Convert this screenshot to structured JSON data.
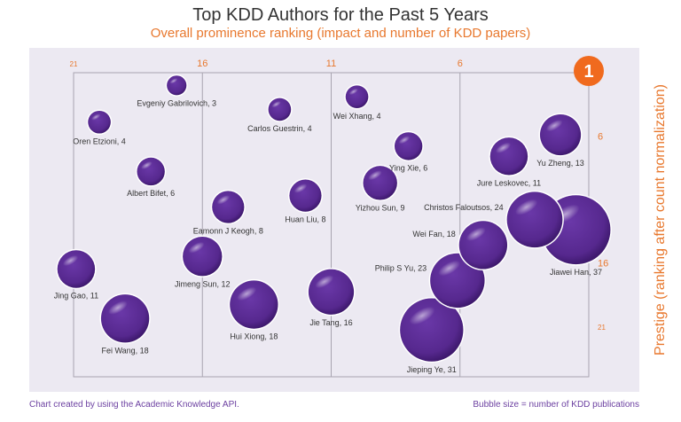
{
  "chart_data": {
    "type": "scatter",
    "subtype": "bubble",
    "title": "Top KDD Authors for the Past 5 Years",
    "subtitle": "Overall prominence ranking (impact and number of KDD papers)",
    "xlabel": "Overall prominence ranking",
    "ylabel": "Prestige (ranking after count normalization)",
    "x_ticks": [
      21,
      16,
      11,
      6
    ],
    "y_ticks": [
      6,
      16,
      21
    ],
    "top_rank_badge": "1",
    "xlim": [
      21,
      1
    ],
    "ylim": [
      1,
      25
    ],
    "size_meaning": "Bubble size = number of KDD publications",
    "source_note": "Chart created by using the Academic Knowledge API.",
    "colors": {
      "bubble": "#5B2C91",
      "accent": "#E8782E",
      "badge": "#F06A1E",
      "panel": "#ECE9F2",
      "footer": "#6B3FA0"
    },
    "points": [
      {
        "name": "Evgeniy Gabrilovich",
        "papers": 3,
        "label": "Evgeniy Gabrilovich, 3",
        "x": 17.0,
        "y": 2.0,
        "label_pos": "below"
      },
      {
        "name": "Oren Etzioni",
        "papers": 4,
        "label": "Oren Etzioni, 4",
        "x": 20.0,
        "y": 4.9,
        "label_pos": "below"
      },
      {
        "name": "Carlos Guestrin",
        "papers": 4,
        "label": "Carlos Guestrin, 4",
        "x": 13.0,
        "y": 3.9,
        "label_pos": "below"
      },
      {
        "name": "Wei Xhang",
        "papers": 4,
        "label": "Wei Xhang, 4",
        "x": 10.0,
        "y": 2.9,
        "label_pos": "below"
      },
      {
        "name": "Albert Bifet",
        "papers": 6,
        "label": "Albert Bifet, 6",
        "x": 18.0,
        "y": 8.8,
        "label_pos": "below"
      },
      {
        "name": "Ying Xie",
        "papers": 6,
        "label": "Ying Xie, 6",
        "x": 8.0,
        "y": 6.8,
        "label_pos": "below"
      },
      {
        "name": "Yizhou Sun",
        "papers": 9,
        "label": "Yizhou Sun, 9",
        "x": 9.1,
        "y": 9.7,
        "label_pos": "below"
      },
      {
        "name": "Jure Leskovec",
        "papers": 11,
        "label": "Jure Leskovec, 11",
        "x": 4.1,
        "y": 7.6,
        "label_pos": "below"
      },
      {
        "name": "Yu Zheng",
        "papers": 13,
        "label": "Yu Zheng, 13",
        "x": 2.1,
        "y": 5.9,
        "label_pos": "below"
      },
      {
        "name": "Eamonn J Keogh",
        "papers": 8,
        "label": "Eamonn J Keogh, 8",
        "x": 15.0,
        "y": 11.6,
        "label_pos": "below"
      },
      {
        "name": "Huan Liu",
        "papers": 8,
        "label": "Huan Liu, 8",
        "x": 12.0,
        "y": 10.7,
        "label_pos": "below"
      },
      {
        "name": "Jing Gao",
        "papers": 11,
        "label": "Jing Gao, 11",
        "x": 20.9,
        "y": 16.5,
        "label_pos": "below"
      },
      {
        "name": "Jimeng Sun",
        "papers": 12,
        "label": "Jimeng Sun, 12",
        "x": 16.0,
        "y": 15.5,
        "label_pos": "below"
      },
      {
        "name": "Hui Xiong",
        "papers": 18,
        "label": "Hui Xiong, 18",
        "x": 14.0,
        "y": 19.3,
        "label_pos": "below"
      },
      {
        "name": "Jie Tang",
        "papers": 16,
        "label": "Jie Tang, 16",
        "x": 11.0,
        "y": 18.3,
        "label_pos": "below"
      },
      {
        "name": "Fei Wang",
        "papers": 18,
        "label": "Fei Wang, 18",
        "x": 19.0,
        "y": 20.4,
        "label_pos": "below"
      },
      {
        "name": "Jieping Ye",
        "papers": 31,
        "label": "Jieping Ye, 31",
        "x": 7.1,
        "y": 21.3,
        "label_pos": "below"
      },
      {
        "name": "Philip S Yu",
        "papers": 23,
        "label": "Philip S Yu, 23",
        "x": 6.1,
        "y": 17.4,
        "label_pos": "left"
      },
      {
        "name": "Wei Fan",
        "papers": 18,
        "label": "Wei Fan, 18",
        "x": 5.1,
        "y": 14.6,
        "label_pos": "left"
      },
      {
        "name": "Jiawei Han",
        "papers": 37,
        "label": "Jiawei Han, 37",
        "x": 1.5,
        "y": 13.4,
        "label_pos": "below"
      },
      {
        "name": "Christos Faloutsos",
        "papers": 24,
        "label": "Christos Faloutsos, 24",
        "x": 3.1,
        "y": 12.6,
        "label_pos": "left"
      }
    ]
  }
}
